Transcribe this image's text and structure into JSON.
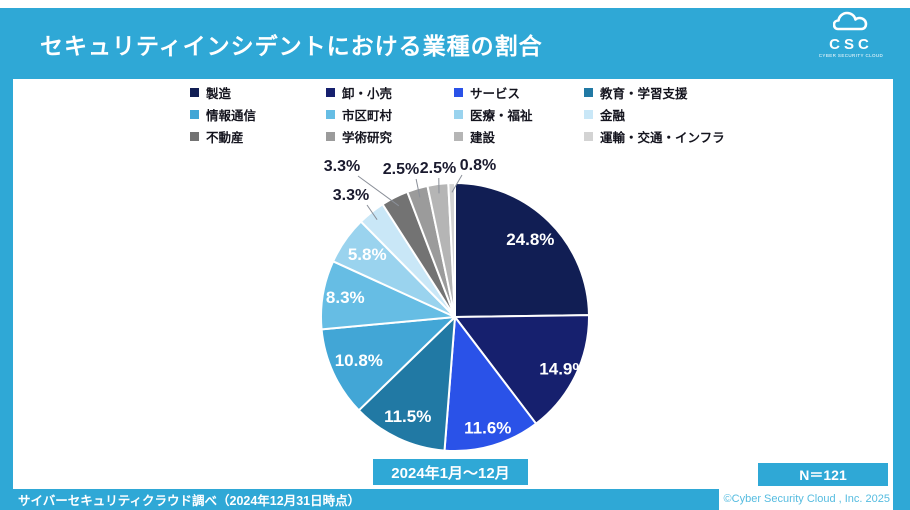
{
  "title": "セキュリティインシデントにおける業種の割合",
  "logo": {
    "text": "CSC",
    "tagline": "CYBER SECURITY CLOUD"
  },
  "chart_data": {
    "type": "pie",
    "title": "セキュリティインシデントにおける業種の割合",
    "period": "2024年1月～12月",
    "n": 121,
    "legend_position": "top",
    "value_suffix": "%",
    "start_angle_deg": 0,
    "direction": "clockwise",
    "slices": [
      {
        "label": "製造",
        "value": 24.8,
        "color": "#111E54"
      },
      {
        "label": "卸・小売",
        "value": 14.9,
        "color": "#16206E"
      },
      {
        "label": "サービス",
        "value": 11.6,
        "color": "#2A52E8"
      },
      {
        "label": "教育・学習支援",
        "value": 11.5,
        "color": "#2179A4"
      },
      {
        "label": "情報通信",
        "value": 10.8,
        "color": "#42A6D6"
      },
      {
        "label": "市区町村",
        "value": 8.3,
        "color": "#66BDE4"
      },
      {
        "label": "医療・福祉",
        "value": 5.8,
        "color": "#9AD3EE"
      },
      {
        "label": "金融",
        "value": 3.3,
        "color": "#C9E7F7"
      },
      {
        "label": "不動産",
        "value": 3.3,
        "color": "#737373"
      },
      {
        "label": "学術研究",
        "value": 2.5,
        "color": "#9B9B9B"
      },
      {
        "label": "建設",
        "value": 2.5,
        "color": "#B5B5B5"
      },
      {
        "label": "運輸・交通・インフラ",
        "value": 0.8,
        "color": "#D3D3D3"
      }
    ]
  },
  "period_label": "2024年1月～12月",
  "sample_size_label": "N＝121",
  "footer": {
    "survey_note": "サイバーセキュリティクラウド調べ（2024年12月31日時点）",
    "copyright": "©Cyber Security Cloud , Inc. 2025"
  },
  "colors": {
    "frame_blue": "#2FA8D6",
    "title_text": "#FFFFFF",
    "inside_label_text": "#FFFFFF",
    "outside_label_text": "#1A1A2E",
    "copyright_text": "#56BCE0"
  }
}
